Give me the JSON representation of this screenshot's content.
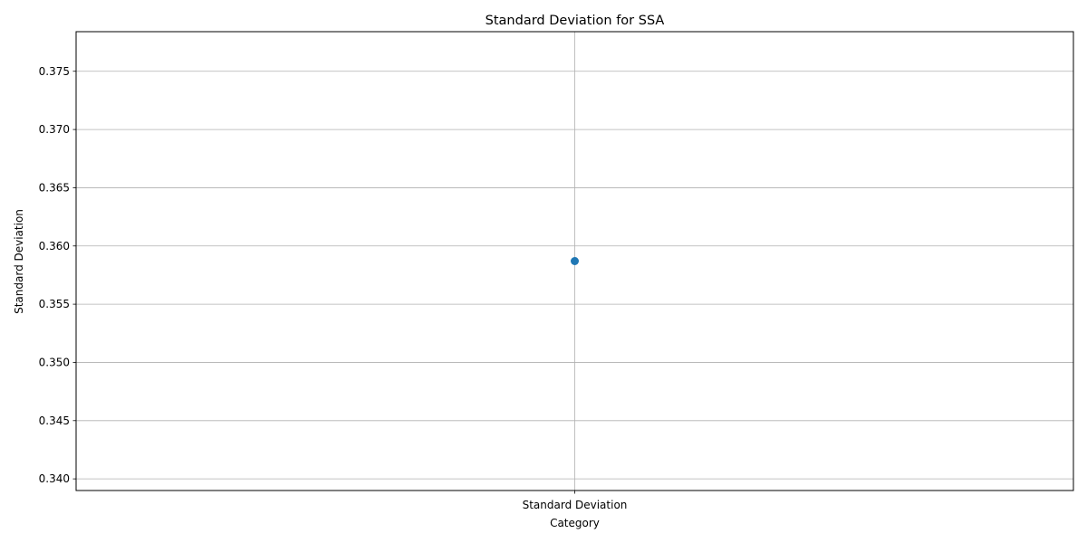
{
  "chart_data": {
    "type": "scatter",
    "title": "Standard Deviation for SSA",
    "xlabel": "Category",
    "ylabel": "Standard Deviation",
    "categories": [
      "Standard Deviation"
    ],
    "series": [
      {
        "values": [
          0.3587
        ],
        "color": "#1f77b4"
      }
    ],
    "ylim": [
      0.339,
      0.3784
    ],
    "yticks": [
      0.34,
      0.345,
      0.35,
      0.355,
      0.36,
      0.365,
      0.37,
      0.375
    ],
    "ytick_labels": [
      "0.340",
      "0.345",
      "0.350",
      "0.355",
      "0.360",
      "0.365",
      "0.370",
      "0.375"
    ],
    "grid": true,
    "grid_color": "#b0b0b0",
    "legend": "none"
  }
}
